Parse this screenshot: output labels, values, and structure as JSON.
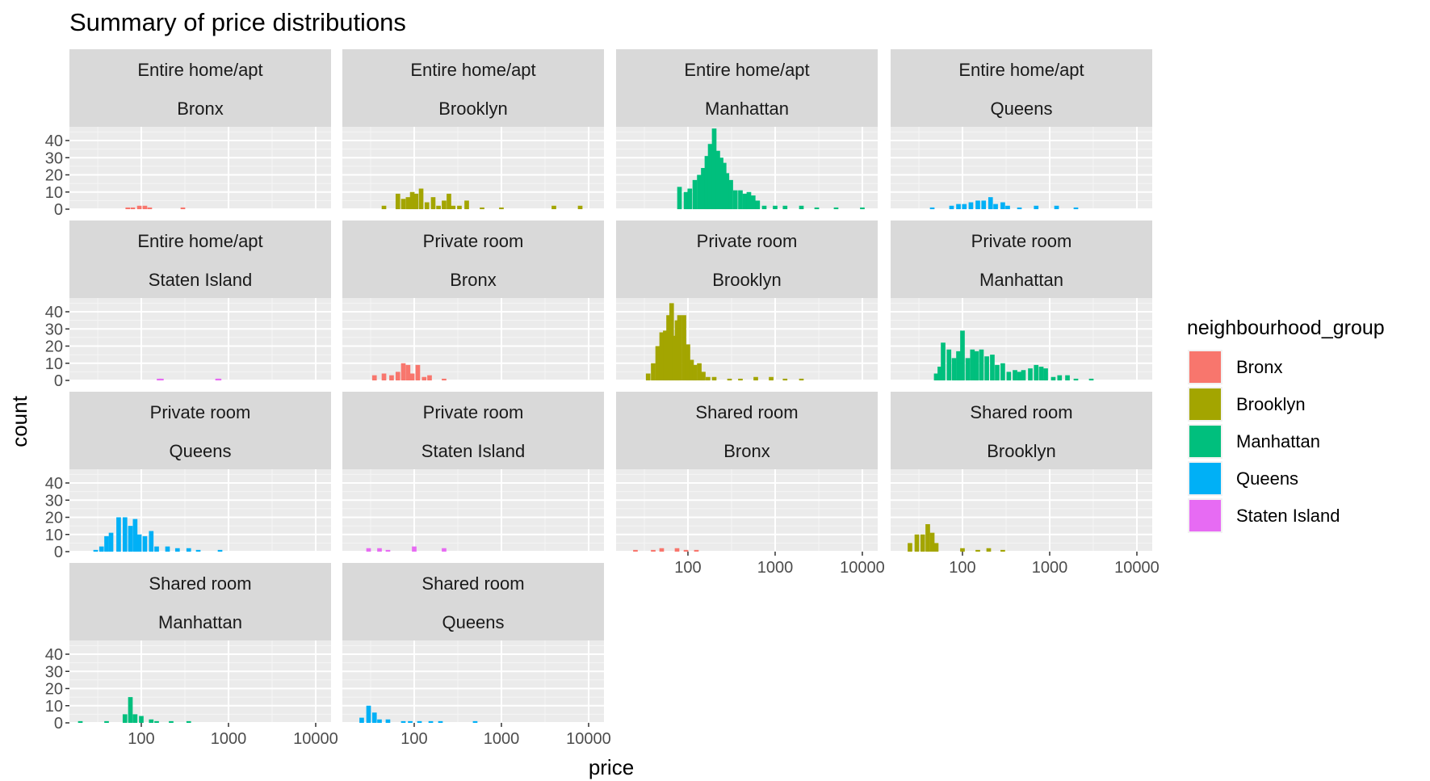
{
  "chart_data": {
    "type": "bar",
    "subtype": "faceted histogram",
    "title": "Summary of price distributions",
    "xlabel": "price",
    "ylabel": "count",
    "x_scale": "log10",
    "xlim": [
      15,
      15000
    ],
    "x_ticks": [
      100,
      1000,
      10000
    ],
    "x_tick_labels": [
      "100",
      "1000",
      "10000"
    ],
    "ylim": [
      0,
      48
    ],
    "y_ticks": [
      0,
      10,
      20,
      30,
      40
    ],
    "y_tick_labels": [
      "0",
      "10",
      "20",
      "30",
      "40"
    ],
    "grid": true,
    "legend": {
      "title": "neighbourhood_group",
      "position": "right",
      "entries": [
        {
          "name": "Bronx",
          "color": "#F8766D"
        },
        {
          "name": "Brooklyn",
          "color": "#A3A500"
        },
        {
          "name": "Manhattan",
          "color": "#00BF7D"
        },
        {
          "name": "Queens",
          "color": "#00B0F6"
        },
        {
          "name": "Staten Island",
          "color": "#E76BF3"
        }
      ]
    },
    "panels": [
      {
        "room_type": "Entire home/apt",
        "group": "Bronx",
        "bins": [
          [
            70,
            1
          ],
          [
            80,
            1
          ],
          [
            95,
            2
          ],
          [
            110,
            2
          ],
          [
            125,
            1
          ],
          [
            300,
            1
          ]
        ]
      },
      {
        "room_type": "Entire home/apt",
        "group": "Brooklyn",
        "bins": [
          [
            45,
            2
          ],
          [
            65,
            9
          ],
          [
            75,
            6
          ],
          [
            85,
            7
          ],
          [
            95,
            10
          ],
          [
            105,
            9
          ],
          [
            120,
            12
          ],
          [
            140,
            4
          ],
          [
            165,
            7
          ],
          [
            190,
            2
          ],
          [
            220,
            5
          ],
          [
            250,
            9
          ],
          [
            280,
            2
          ],
          [
            330,
            2
          ],
          [
            400,
            5
          ],
          [
            600,
            1
          ],
          [
            1000,
            1
          ],
          [
            4000,
            2
          ],
          [
            8000,
            2
          ]
        ]
      },
      {
        "room_type": "Entire home/apt",
        "group": "Manhattan",
        "bins": [
          [
            80,
            13
          ],
          [
            95,
            10
          ],
          [
            105,
            12
          ],
          [
            120,
            17
          ],
          [
            135,
            20
          ],
          [
            150,
            24
          ],
          [
            165,
            31
          ],
          [
            180,
            38
          ],
          [
            200,
            47
          ],
          [
            220,
            34
          ],
          [
            240,
            30
          ],
          [
            260,
            27
          ],
          [
            280,
            21
          ],
          [
            310,
            17
          ],
          [
            350,
            11
          ],
          [
            400,
            11
          ],
          [
            450,
            9
          ],
          [
            500,
            10
          ],
          [
            560,
            8
          ],
          [
            630,
            5
          ],
          [
            750,
            2
          ],
          [
            1000,
            2
          ],
          [
            1300,
            2
          ],
          [
            2000,
            2
          ],
          [
            3000,
            1
          ],
          [
            5000,
            1
          ],
          [
            10000,
            1
          ]
        ]
      },
      {
        "room_type": "Entire home/apt",
        "group": "Queens",
        "bins": [
          [
            45,
            1
          ],
          [
            75,
            2
          ],
          [
            90,
            3
          ],
          [
            105,
            3
          ],
          [
            125,
            4
          ],
          [
            150,
            5
          ],
          [
            175,
            5
          ],
          [
            210,
            7
          ],
          [
            240,
            3
          ],
          [
            290,
            4
          ],
          [
            330,
            2
          ],
          [
            450,
            1
          ],
          [
            700,
            2
          ],
          [
            1200,
            2
          ],
          [
            2000,
            1
          ]
        ]
      },
      {
        "room_type": "Entire home/apt",
        "group": "Staten Island",
        "bins": [
          [
            160,
            1
          ],
          [
            170,
            1
          ],
          [
            750,
            1
          ],
          [
            780,
            1
          ]
        ]
      },
      {
        "room_type": "Private room",
        "group": "Bronx",
        "bins": [
          [
            35,
            3
          ],
          [
            45,
            4
          ],
          [
            55,
            3
          ],
          [
            65,
            5
          ],
          [
            75,
            10
          ],
          [
            85,
            9
          ],
          [
            95,
            4
          ],
          [
            110,
            9
          ],
          [
            130,
            2
          ],
          [
            150,
            3
          ],
          [
            220,
            1
          ]
        ]
      },
      {
        "room_type": "Private room",
        "group": "Brooklyn",
        "bins": [
          [
            35,
            4
          ],
          [
            40,
            10
          ],
          [
            45,
            20
          ],
          [
            50,
            28
          ],
          [
            55,
            29
          ],
          [
            60,
            38
          ],
          [
            65,
            45
          ],
          [
            70,
            26
          ],
          [
            75,
            35
          ],
          [
            80,
            38
          ],
          [
            90,
            38
          ],
          [
            100,
            21
          ],
          [
            110,
            12
          ],
          [
            120,
            9
          ],
          [
            135,
            10
          ],
          [
            150,
            5
          ],
          [
            170,
            2
          ],
          [
            200,
            2
          ],
          [
            300,
            1
          ],
          [
            400,
            1
          ],
          [
            600,
            2
          ],
          [
            900,
            2
          ],
          [
            1300,
            1
          ],
          [
            2000,
            1
          ]
        ]
      },
      {
        "room_type": "Private room",
        "group": "Manhattan",
        "bins": [
          [
            50,
            4
          ],
          [
            55,
            8
          ],
          [
            60,
            22
          ],
          [
            70,
            18
          ],
          [
            80,
            13
          ],
          [
            90,
            17
          ],
          [
            100,
            29
          ],
          [
            115,
            13
          ],
          [
            130,
            18
          ],
          [
            145,
            17
          ],
          [
            165,
            18
          ],
          [
            190,
            14
          ],
          [
            220,
            15
          ],
          [
            250,
            9
          ],
          [
            290,
            10
          ],
          [
            340,
            5
          ],
          [
            400,
            6
          ],
          [
            450,
            5
          ],
          [
            500,
            6
          ],
          [
            600,
            7
          ],
          [
            700,
            9
          ],
          [
            800,
            8
          ],
          [
            900,
            7
          ],
          [
            1100,
            2
          ],
          [
            1300,
            3
          ],
          [
            1600,
            3
          ],
          [
            2000,
            1
          ],
          [
            3000,
            1
          ]
        ]
      },
      {
        "room_type": "Private room",
        "group": "Queens",
        "bins": [
          [
            30,
            1
          ],
          [
            35,
            3
          ],
          [
            40,
            9
          ],
          [
            45,
            11
          ],
          [
            55,
            20
          ],
          [
            65,
            20
          ],
          [
            75,
            15
          ],
          [
            85,
            19
          ],
          [
            95,
            10
          ],
          [
            110,
            9
          ],
          [
            130,
            12
          ],
          [
            150,
            3
          ],
          [
            200,
            3
          ],
          [
            260,
            2
          ],
          [
            350,
            2
          ],
          [
            450,
            1
          ],
          [
            800,
            1
          ]
        ]
      },
      {
        "room_type": "Private room",
        "group": "Staten Island",
        "bins": [
          [
            30,
            2
          ],
          [
            40,
            2
          ],
          [
            50,
            1
          ],
          [
            100,
            3
          ],
          [
            220,
            2
          ]
        ]
      },
      {
        "room_type": "Shared room",
        "group": "Bronx",
        "bins": [
          [
            25,
            1
          ],
          [
            40,
            1
          ],
          [
            50,
            2
          ],
          [
            75,
            2
          ],
          [
            95,
            1
          ],
          [
            125,
            1
          ]
        ]
      },
      {
        "room_type": "Shared room",
        "group": "Brooklyn",
        "bins": [
          [
            25,
            5
          ],
          [
            30,
            10
          ],
          [
            35,
            10
          ],
          [
            40,
            16
          ],
          [
            45,
            11
          ],
          [
            50,
            5
          ],
          [
            100,
            2
          ],
          [
            150,
            1
          ],
          [
            200,
            2
          ],
          [
            290,
            1
          ]
        ]
      },
      {
        "room_type": "Shared room",
        "group": "Manhattan",
        "bins": [
          [
            20,
            1
          ],
          [
            40,
            1
          ],
          [
            65,
            5
          ],
          [
            75,
            15
          ],
          [
            85,
            5
          ],
          [
            100,
            4
          ],
          [
            130,
            2
          ],
          [
            150,
            1
          ],
          [
            220,
            1
          ],
          [
            350,
            1
          ]
        ]
      },
      {
        "room_type": "Shared room",
        "group": "Queens",
        "bins": [
          [
            25,
            3
          ],
          [
            30,
            10
          ],
          [
            35,
            6
          ],
          [
            40,
            2
          ],
          [
            50,
            2
          ],
          [
            75,
            1
          ],
          [
            90,
            1
          ],
          [
            115,
            1
          ],
          [
            155,
            1
          ],
          [
            200,
            1
          ],
          [
            500,
            1
          ]
        ]
      }
    ]
  }
}
